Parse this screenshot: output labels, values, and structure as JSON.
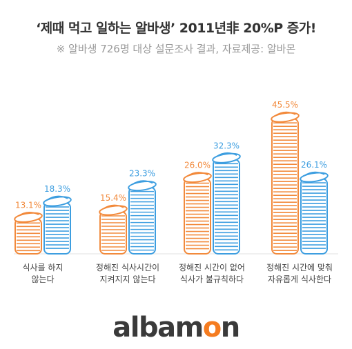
{
  "header": {
    "title": "‘제때 먹고 일하는 알바생’ 2011년非 20%P 증가!",
    "subtitle": "※ 알바생 726명 대상 설문조사 결과, 자료제공: 알바몬"
  },
  "logo": {
    "text_a": "albam",
    "text_accent": "o",
    "text_b": "n",
    "accent_color": "#f57c20"
  },
  "colors": {
    "series_2011": "#f28a3c",
    "series_2012": "#3d9ee0"
  },
  "chart_data": {
    "type": "bar",
    "categories": [
      [
        "식사를 하지",
        "않는다"
      ],
      [
        "정해진 식사시간이",
        "지켜지지 않는다"
      ],
      [
        "정해진 시간이 없어",
        "식사가 불규칙하다"
      ],
      [
        "정해진 시간에 맞춰",
        "자유롭게 식사한다"
      ]
    ],
    "series": [
      {
        "values": [
          13.1,
          15.4,
          26.0,
          45.5
        ],
        "labels": [
          "13.1%",
          "15.4%",
          "26.0%",
          "45.5%"
        ]
      },
      {
        "values": [
          18.3,
          23.3,
          32.3,
          26.1
        ],
        "labels": [
          "18.3%",
          "23.3%",
          "32.3%",
          "26.1%"
        ]
      }
    ],
    "ylim": [
      0,
      50
    ],
    "grid": false,
    "legend": false
  }
}
